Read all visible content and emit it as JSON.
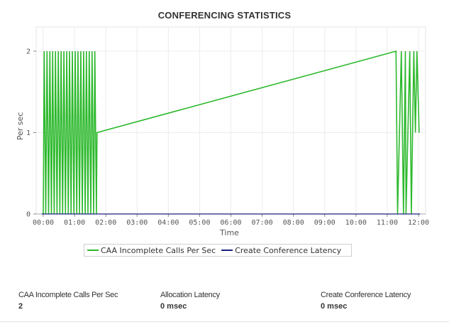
{
  "chart_data": {
    "type": "line",
    "title": "CONFERENCING STATISTICS",
    "xlabel": "Time",
    "ylabel": "Per sec",
    "x_ticks": [
      "00:00",
      "01:00",
      "02:00",
      "03:00",
      "04:00",
      "05:00",
      "06:00",
      "07:00",
      "08:00",
      "09:00",
      "10:00",
      "11:00",
      "12:00"
    ],
    "y_ticks": [
      0,
      1,
      2
    ],
    "ylim": [
      0,
      2.3
    ],
    "xlim_hours": [
      -0.25,
      12.1
    ],
    "grid": true,
    "legend_placement": "bottom",
    "series": [
      {
        "name": "CAA Incomplete Calls Per Sec",
        "color": "#2db92d",
        "x_hours": [
          0.0,
          0.03,
          0.08,
          0.12,
          0.17,
          0.21,
          0.26,
          0.3,
          0.35,
          0.39,
          0.44,
          0.48,
          0.53,
          0.57,
          0.62,
          0.66,
          0.71,
          0.75,
          0.8,
          0.84,
          0.89,
          0.93,
          0.98,
          1.02,
          1.07,
          1.11,
          1.16,
          1.2,
          1.25,
          1.29,
          1.34,
          1.38,
          1.43,
          1.47,
          1.52,
          1.56,
          1.61,
          1.65,
          1.7,
          1.72,
          11.28,
          11.33,
          11.45,
          11.52,
          11.58,
          11.6,
          11.72,
          11.77,
          11.85,
          11.9,
          11.95,
          12.02
        ],
        "values": [
          0,
          2,
          0,
          2,
          0,
          2,
          0,
          2,
          0,
          2,
          0,
          2,
          0,
          2,
          0,
          2,
          0,
          2,
          0,
          2,
          0,
          2,
          0,
          2,
          0,
          2,
          0,
          2,
          0,
          2,
          0,
          2,
          0,
          2,
          0,
          2,
          0,
          2,
          0,
          1,
          2,
          0,
          2,
          0,
          2,
          0,
          2,
          0,
          2,
          1,
          2,
          1
        ]
      },
      {
        "name": "Create Conference Latency",
        "color": "#1a237e",
        "x_hours": [
          -0.05,
          12.05
        ],
        "values": [
          0,
          0
        ]
      }
    ]
  },
  "stats": [
    {
      "label": "CAA Incomplete Calls Per Sec",
      "value": "2"
    },
    {
      "label": "Allocation Latency",
      "value": "0 msec"
    },
    {
      "label": "Create Conference Latency",
      "value": "0 msec"
    }
  ]
}
